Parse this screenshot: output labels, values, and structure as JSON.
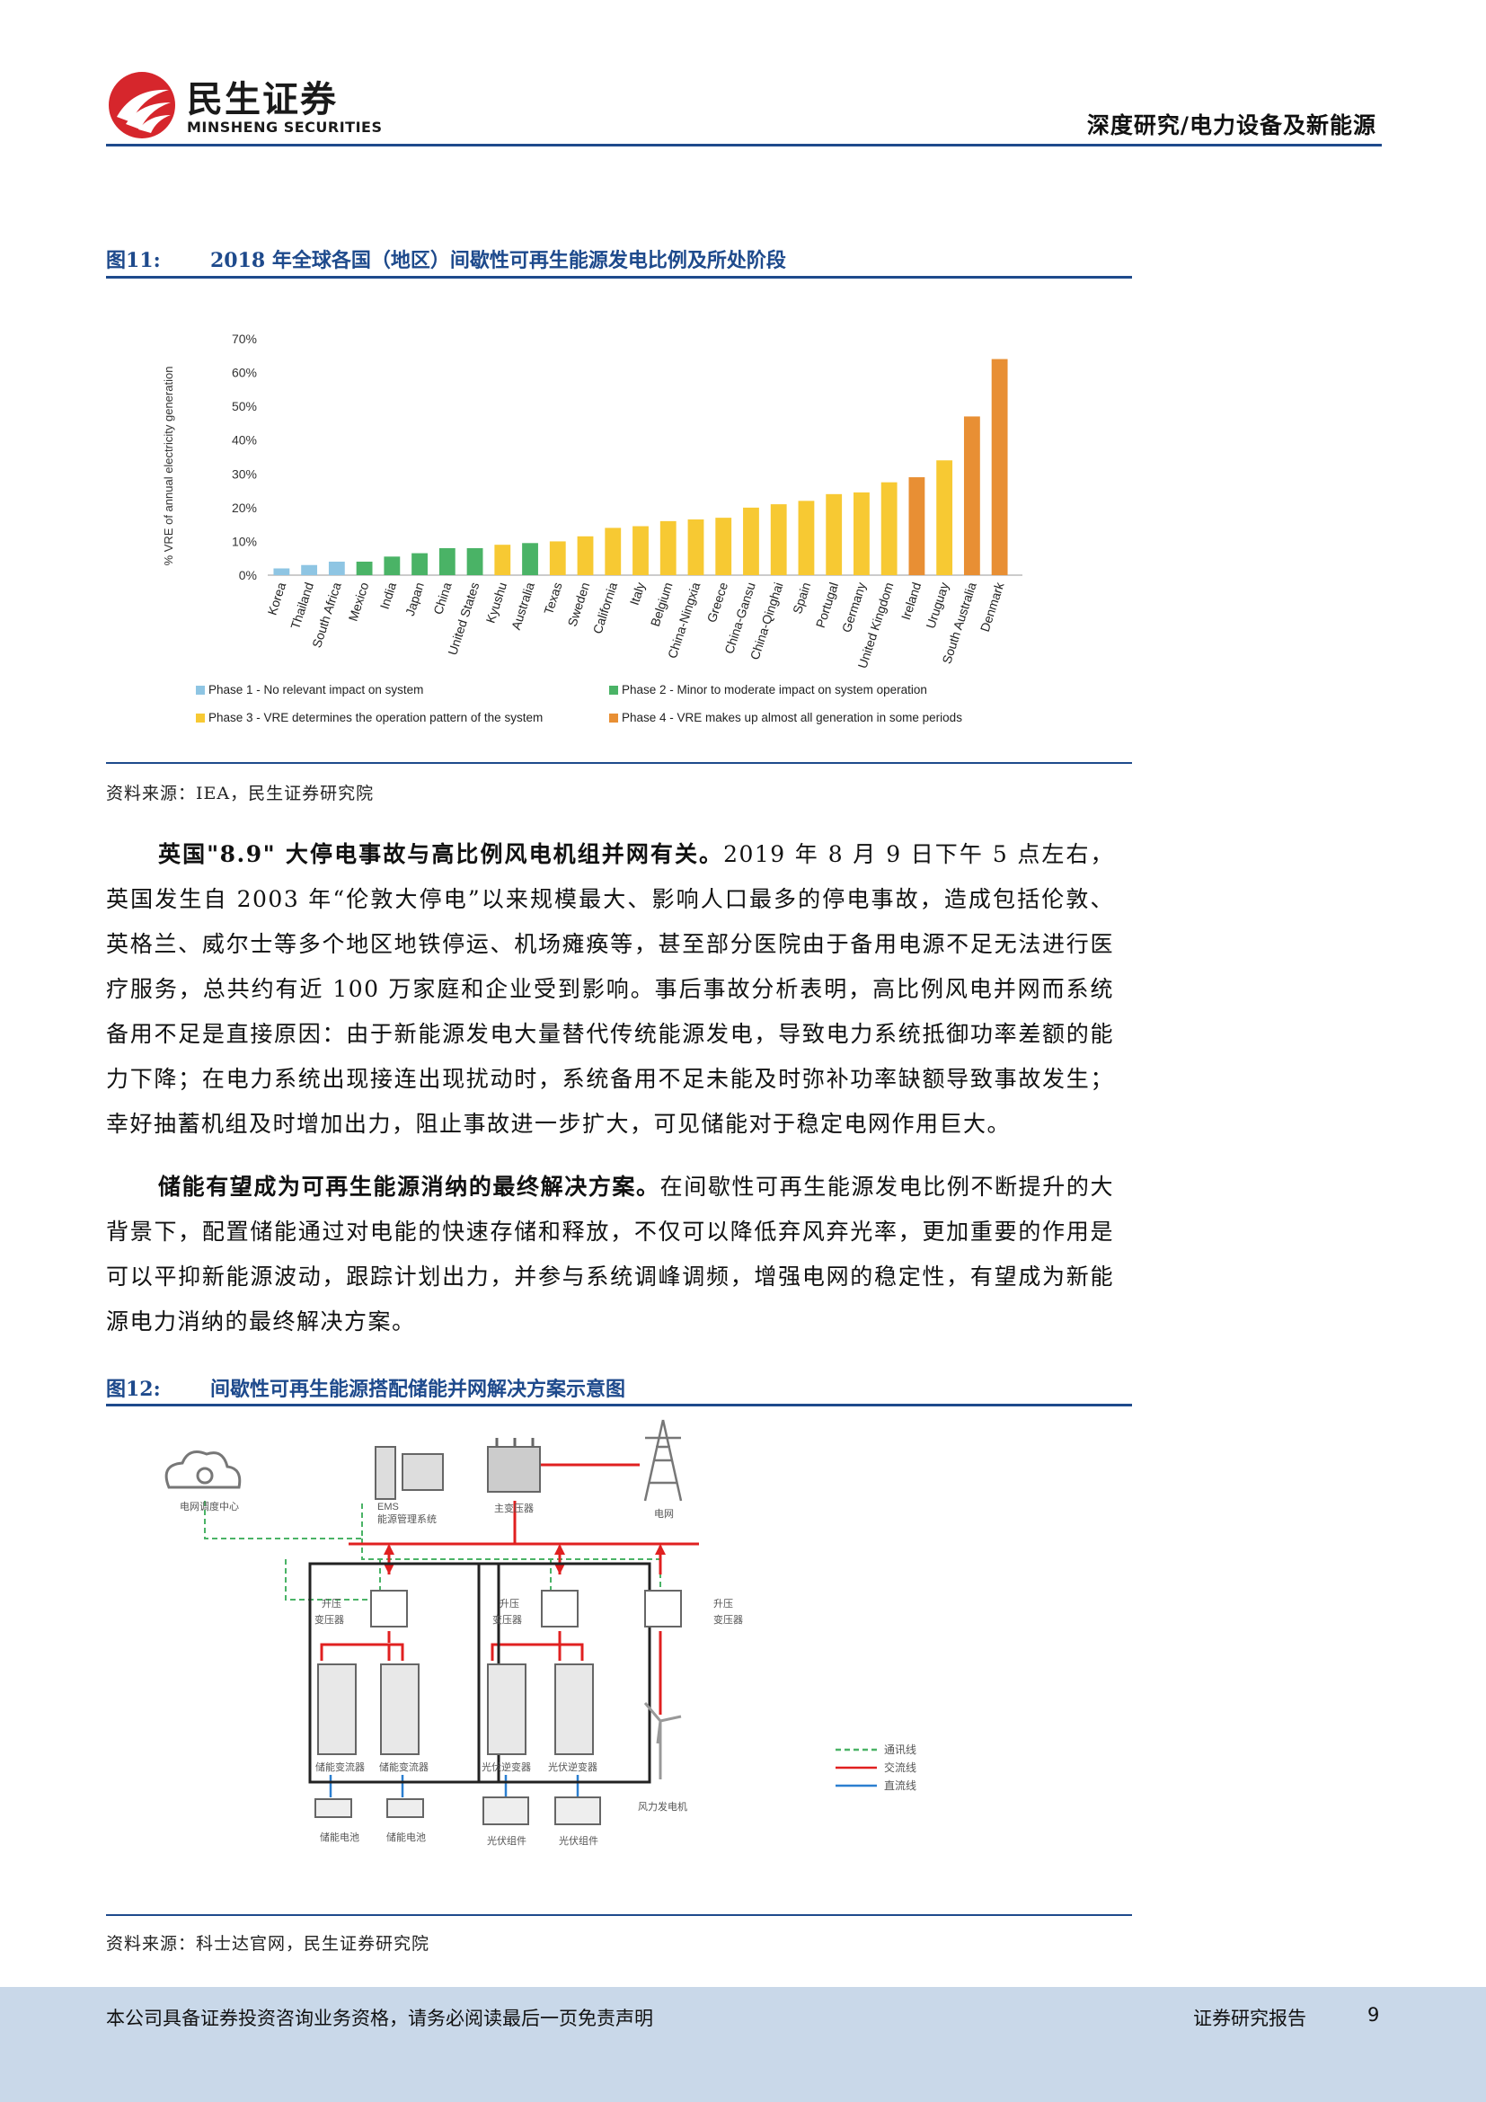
{
  "header": {
    "brand_cn": "民生证券",
    "brand_en": "MINSHENG SECURITIES",
    "section": "深度研究/电力设备及新能源"
  },
  "figure11": {
    "label": "图11:",
    "title": "2018 年全球各国（地区）间歇性可再生能源发电比例及所处阶段",
    "source": "资料来源：IEA，民生证券研究院"
  },
  "chart_data": {
    "type": "bar",
    "ylabel": "% VRE of annual electricity generation",
    "ylim": [
      0,
      70
    ],
    "yticks": [
      "0%",
      "10%",
      "20%",
      "30%",
      "40%",
      "50%",
      "60%",
      "70%"
    ],
    "categories": [
      "Korea",
      "Thailand",
      "South Africa",
      "Mexico",
      "India",
      "Japan",
      "China",
      "United States",
      "Kyushu",
      "Australia",
      "Texas",
      "Sweden",
      "California",
      "Italy",
      "Belgium",
      "China-Ningxia",
      "Greece",
      "China-Gansu",
      "China-Qinghai",
      "Spain",
      "Portugal",
      "Germany",
      "United Kingdom",
      "Ireland",
      "Uruguay",
      "South Australia",
      "Denmark"
    ],
    "values": [
      2,
      3,
      4,
      4,
      5.5,
      6.5,
      8,
      8,
      9,
      9.5,
      10,
      11.5,
      14,
      14.5,
      16,
      16.5,
      17,
      20,
      21,
      22,
      24,
      24.5,
      27.5,
      29,
      34,
      47,
      64
    ],
    "phases": [
      1,
      1,
      1,
      2,
      2,
      2,
      2,
      2,
      3,
      2,
      3,
      3,
      3,
      3,
      3,
      3,
      3,
      3,
      3,
      3,
      3,
      3,
      3,
      4,
      3,
      4,
      4
    ],
    "legend": [
      {
        "phase": 1,
        "label": "Phase 1 - No relevant impact on system",
        "color": "#8ec5e3"
      },
      {
        "phase": 2,
        "label": "Phase 2 - Minor to moderate impact on system operation",
        "color": "#4ab366"
      },
      {
        "phase": 3,
        "label": "Phase 3 - VRE determines the operation pattern of the system",
        "color": "#f7c933"
      },
      {
        "phase": 4,
        "label": "Phase 4 - VRE makes up almost all generation in some periods",
        "color": "#e88f34"
      }
    ],
    "legend_position": "bottom"
  },
  "para1": {
    "bold": "英国\"8.9\" 大停电事故与高比例风电机组并网有关。",
    "text": "2019 年 8 月 9 日下午 5 点左右，英国发生自 2003 年“伦敦大停电”以来规模最大、影响人口最多的停电事故，造成包括伦敦、英格兰、威尔士等多个地区地铁停运、机场瘫痪等，甚至部分医院由于备用电源不足无法进行医疗服务，总共约有近 100 万家庭和企业受到影响。事后事故分析表明，高比例风电并网而系统备用不足是直接原因：由于新能源发电大量替代传统能源发电，导致电力系统抵御功率差额的能力下降；在电力系统出现接连出现扰动时，系统备用不足未能及时弥补功率缺额导致事故发生；幸好抽蓄机组及时增加出力，阻止事故进一步扩大，可见储能对于稳定电网作用巨大。"
  },
  "para2": {
    "bold": "储能有望成为可再生能源消纳的最终解决方案。",
    "text": "在间歇性可再生能源发电比例不断提升的大背景下，配置储能通过对电能的快速存储和释放，不仅可以降低弃风弃光率，更加重要的作用是可以平抑新能源波动，跟踪计划出力，并参与系统调峰调频，增强电网的稳定性，有望成为新能源电力消纳的最终解决方案。"
  },
  "figure12": {
    "label": "图12:",
    "title": "间歇性可再生能源搭配储能并网解决方案示意图",
    "source": "资料来源：科士达官网，民生证券研究院",
    "labels": {
      "grid_dispatch": "电网调度中心",
      "ems1": "EMS",
      "ems2": "能源管理系统",
      "main_transformer": "主变压器",
      "grid": "电网",
      "stepup": "升压",
      "transformer": "变压器",
      "pcs": "储能变流器",
      "pv_inverter": "光伏逆变器",
      "battery": "储能电池",
      "pv_module": "光伏组件",
      "wind": "风力发电机"
    },
    "legend": [
      {
        "label": "通讯线",
        "color": "#4ab366"
      },
      {
        "label": "交流线",
        "color": "#e02020"
      },
      {
        "label": "直流线",
        "color": "#2b7fd0"
      }
    ]
  },
  "footer": {
    "disclaimer": "本公司具备证券投资咨询业务资格，请务必阅读最后一页免责声明",
    "report_type": "证券研究报告",
    "page": "9"
  }
}
